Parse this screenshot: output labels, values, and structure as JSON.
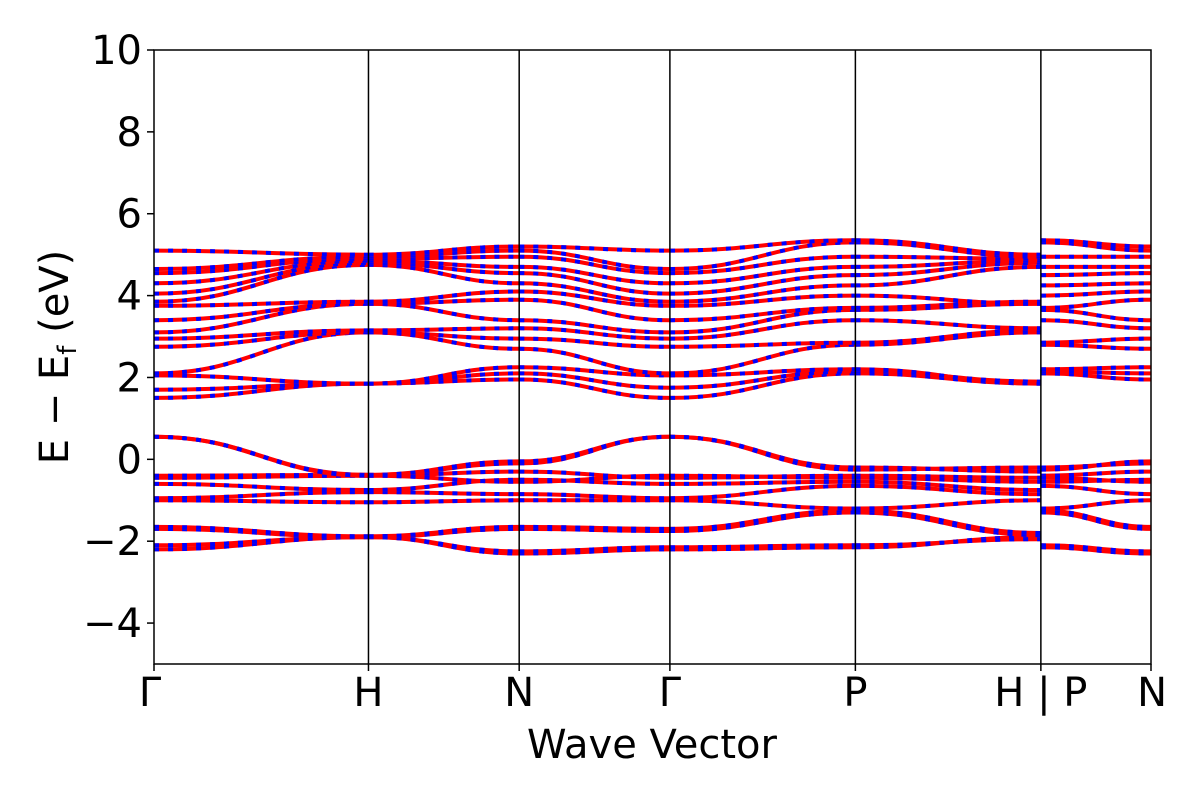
{
  "chart_data": {
    "type": "line",
    "title": "",
    "xlabel": "Wave Vector",
    "ylabel": "E − E_f (eV)",
    "ylabel_parts": {
      "main": "E − E",
      "sub": "f",
      "unit": " (eV)"
    },
    "ylim": [
      -5,
      10
    ],
    "yticks": [
      -4,
      -2,
      0,
      2,
      4,
      6,
      8,
      10
    ],
    "ytick_labels": [
      "−4",
      "−2",
      "0",
      "2",
      "4",
      "6",
      "8",
      "10"
    ],
    "xlim": [
      0,
      3.44
    ],
    "kpoints": [
      {
        "label": "Γ",
        "x": 0.0
      },
      {
        "label": "H",
        "x": 0.74
      },
      {
        "label": "N",
        "x": 1.26
      },
      {
        "label": "Γ",
        "x": 1.78
      },
      {
        "label": "P",
        "x": 2.42
      },
      {
        "label": "H | P",
        "x": 3.06
      },
      {
        "label": "N",
        "x": 3.44
      }
    ],
    "grid": false,
    "legend": "none",
    "colors": {
      "spin_up": "#ff0000",
      "spin_down": "#0000ff",
      "kline": "#000000"
    },
    "note_segments": "Energies (eV) at high-symmetry points per band; bands drawn as smooth curves between points.",
    "segments": [
      {
        "x0": 0.0,
        "x1": 0.74,
        "bands": [
          [
            -2.2,
            -1.9
          ],
          [
            -2.1,
            -1.9
          ],
          [
            -1.7,
            -1.9
          ],
          [
            -1.65,
            -1.88
          ],
          [
            -1.0,
            -1.05
          ],
          [
            -0.95,
            -0.8
          ],
          [
            -0.6,
            -0.75
          ],
          [
            -0.45,
            -0.4
          ],
          [
            -0.4,
            -0.38
          ],
          [
            0.55,
            -0.38
          ],
          [
            0.55,
            -0.4
          ],
          [
            1.5,
            1.85
          ],
          [
            1.7,
            1.85
          ],
          [
            2.05,
            1.85
          ],
          [
            2.1,
            3.1
          ],
          [
            2.75,
            3.1
          ],
          [
            2.95,
            3.15
          ],
          [
            3.1,
            3.8
          ],
          [
            3.4,
            3.8
          ],
          [
            3.75,
            3.85
          ],
          [
            3.85,
            4.75
          ],
          [
            4.05,
            4.8
          ],
          [
            4.3,
            4.85
          ],
          [
            4.55,
            4.9
          ],
          [
            4.65,
            4.95
          ],
          [
            5.1,
            5.0
          ]
        ]
      },
      {
        "x0": 0.74,
        "x1": 1.26,
        "bands": [
          [
            -1.9,
            -2.3
          ],
          [
            -1.9,
            -2.25
          ],
          [
            -1.9,
            -1.7
          ],
          [
            -1.88,
            -1.65
          ],
          [
            -1.05,
            -1.0
          ],
          [
            -0.8,
            -0.85
          ],
          [
            -0.75,
            -0.5
          ],
          [
            -0.4,
            -0.3
          ],
          [
            -0.38,
            -0.1
          ],
          [
            -0.38,
            -0.05
          ],
          [
            -0.4,
            -0.55
          ],
          [
            1.85,
            1.95
          ],
          [
            1.85,
            2.1
          ],
          [
            1.85,
            2.25
          ],
          [
            3.1,
            2.7
          ],
          [
            3.1,
            2.95
          ],
          [
            3.15,
            3.2
          ],
          [
            3.8,
            3.4
          ],
          [
            3.8,
            3.9
          ],
          [
            3.85,
            4.1
          ],
          [
            4.75,
            4.3
          ],
          [
            4.8,
            4.55
          ],
          [
            4.85,
            4.7
          ],
          [
            4.9,
            4.95
          ],
          [
            4.95,
            5.1
          ],
          [
            5.0,
            5.2
          ]
        ]
      },
      {
        "x0": 1.26,
        "x1": 1.78,
        "bands": [
          [
            -2.3,
            -2.2
          ],
          [
            -2.25,
            -2.15
          ],
          [
            -1.7,
            -1.75
          ],
          [
            -1.65,
            -1.7
          ],
          [
            -1.0,
            -1.0
          ],
          [
            -0.85,
            -0.95
          ],
          [
            -0.5,
            -0.6
          ],
          [
            -0.3,
            -0.45
          ],
          [
            -0.1,
            0.55
          ],
          [
            -0.05,
            0.55
          ],
          [
            -0.55,
            -0.4
          ],
          [
            1.95,
            1.5
          ],
          [
            2.1,
            1.75
          ],
          [
            2.25,
            2.05
          ],
          [
            2.7,
            2.1
          ],
          [
            2.95,
            2.75
          ],
          [
            3.2,
            2.95
          ],
          [
            3.4,
            3.1
          ],
          [
            3.9,
            3.4
          ],
          [
            4.1,
            3.75
          ],
          [
            4.3,
            3.85
          ],
          [
            4.55,
            4.05
          ],
          [
            4.7,
            4.3
          ],
          [
            4.95,
            4.55
          ],
          [
            5.1,
            4.65
          ],
          [
            5.2,
            5.1
          ]
        ]
      },
      {
        "x0": 1.78,
        "x1": 2.42,
        "bands": [
          [
            -2.2,
            -2.15
          ],
          [
            -2.15,
            -2.1
          ],
          [
            -1.75,
            -1.3
          ],
          [
            -1.7,
            -1.25
          ],
          [
            -1.0,
            -1.2
          ],
          [
            -0.95,
            -0.65
          ],
          [
            -0.6,
            -0.55
          ],
          [
            -0.45,
            -0.4
          ],
          [
            0.55,
            -0.2
          ],
          [
            0.55,
            -0.25
          ],
          [
            -0.4,
            -0.45
          ],
          [
            1.5,
            2.1
          ],
          [
            1.75,
            2.15
          ],
          [
            2.05,
            2.2
          ],
          [
            2.1,
            2.8
          ],
          [
            2.75,
            2.85
          ],
          [
            2.95,
            3.4
          ],
          [
            3.1,
            3.65
          ],
          [
            3.4,
            3.7
          ],
          [
            3.75,
            4.0
          ],
          [
            3.85,
            4.25
          ],
          [
            4.05,
            4.5
          ],
          [
            4.3,
            4.7
          ],
          [
            4.55,
            4.95
          ],
          [
            4.65,
            5.3
          ],
          [
            5.1,
            5.35
          ]
        ]
      },
      {
        "x0": 2.42,
        "x1": 3.06,
        "bands": [
          [
            -2.15,
            -1.9
          ],
          [
            -2.1,
            -1.95
          ],
          [
            -1.3,
            -1.85
          ],
          [
            -1.25,
            -1.8
          ],
          [
            -1.2,
            -1.0
          ],
          [
            -0.65,
            -0.85
          ],
          [
            -0.55,
            -0.75
          ],
          [
            -0.4,
            -0.45
          ],
          [
            -0.2,
            -0.3
          ],
          [
            -0.25,
            -0.2
          ],
          [
            -0.45,
            -0.55
          ],
          [
            2.1,
            1.85
          ],
          [
            2.15,
            1.9
          ],
          [
            2.2,
            1.85
          ],
          [
            2.8,
            3.1
          ],
          [
            2.85,
            3.15
          ],
          [
            3.4,
            3.2
          ],
          [
            3.65,
            3.8
          ],
          [
            3.7,
            3.85
          ],
          [
            4.0,
            3.8
          ],
          [
            4.25,
            4.7
          ],
          [
            4.5,
            4.8
          ],
          [
            4.7,
            4.85
          ],
          [
            4.95,
            4.9
          ],
          [
            5.3,
            4.95
          ],
          [
            5.35,
            5.0
          ]
        ]
      },
      {
        "x0": 3.06,
        "x1": 3.44,
        "bands": [
          [
            -2.15,
            -2.3
          ],
          [
            -2.1,
            -2.25
          ],
          [
            -1.3,
            -1.7
          ],
          [
            -1.25,
            -1.65
          ],
          [
            -1.2,
            -1.0
          ],
          [
            -0.65,
            -0.85
          ],
          [
            -0.55,
            -0.5
          ],
          [
            -0.4,
            -0.3
          ],
          [
            -0.2,
            -0.1
          ],
          [
            -0.25,
            -0.05
          ],
          [
            -0.45,
            -0.55
          ],
          [
            2.1,
            1.95
          ],
          [
            2.15,
            2.1
          ],
          [
            2.2,
            2.25
          ],
          [
            2.8,
            2.7
          ],
          [
            2.85,
            2.95
          ],
          [
            3.4,
            3.2
          ],
          [
            3.65,
            3.4
          ],
          [
            3.7,
            3.9
          ],
          [
            4.0,
            4.1
          ],
          [
            4.25,
            4.3
          ],
          [
            4.5,
            4.55
          ],
          [
            4.7,
            4.7
          ],
          [
            4.95,
            4.95
          ],
          [
            5.3,
            5.1
          ],
          [
            5.35,
            5.2
          ]
        ]
      }
    ]
  }
}
